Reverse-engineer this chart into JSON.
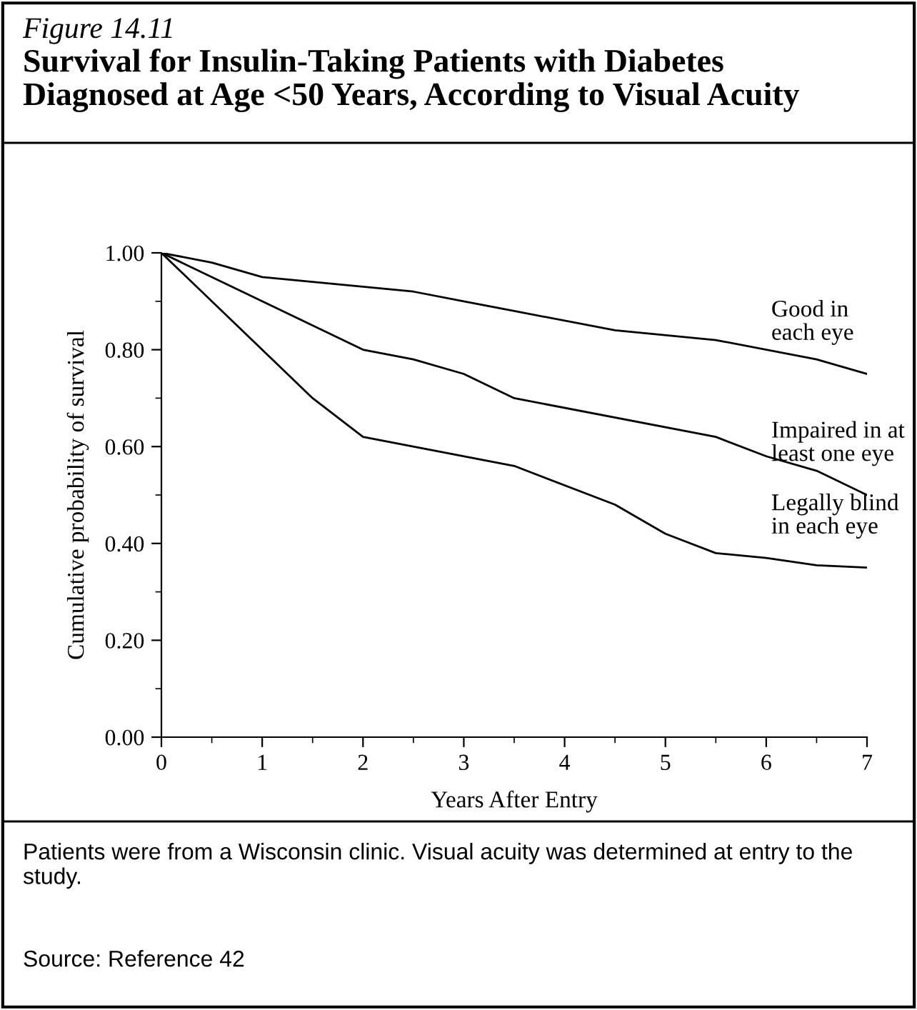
{
  "chart_data": {
    "type": "line",
    "title": "Survival for Insulin-Taking Patients with Diabetes\nDiagnosed at Age <50 Years, According to Visual Acuity",
    "subtitle": "Figure 14.11",
    "xlabel": "Years After Entry",
    "ylabel": "Cumulative probability of survival",
    "series": [
      {
        "name": "Good in\neach eye",
        "color": "#000000",
        "x": [
          0,
          0.5,
          1,
          2,
          2.5,
          3,
          3.5,
          4.5,
          5.5,
          6.5,
          7
        ],
        "values": [
          1.0,
          0.98,
          0.95,
          0.93,
          0.92,
          0.9,
          0.88,
          0.84,
          0.82,
          0.78,
          0.75
        ]
      },
      {
        "name": "Impaired in at\nleast one eye",
        "color": "#000000",
        "x": [
          0,
          1,
          2,
          2.5,
          3,
          3.5,
          5.5,
          6,
          6.5,
          7
        ],
        "values": [
          1.0,
          0.9,
          0.8,
          0.78,
          0.75,
          0.7,
          0.62,
          0.58,
          0.55,
          0.5
        ]
      },
      {
        "name": "Legally blind\nin each eye",
        "color": "#000000",
        "x": [
          0,
          1.5,
          2,
          3.5,
          4.5,
          5,
          5.5,
          6,
          6.5,
          7
        ],
        "values": [
          1.0,
          0.7,
          0.62,
          0.56,
          0.48,
          0.42,
          0.38,
          0.37,
          0.355,
          0.35
        ]
      }
    ],
    "xlim": [
      0,
      7
    ],
    "xticks": [
      0,
      1,
      2,
      3,
      4,
      5,
      6,
      7
    ],
    "ylim": [
      0,
      1
    ],
    "yticks": [
      {
        "value": 0,
        "label": "0.00"
      },
      {
        "value": 0.2,
        "label": "0.20"
      },
      {
        "value": 0.4,
        "label": "0.40"
      },
      {
        "value": 0.6,
        "label": "0.60"
      },
      {
        "value": 0.8,
        "label": "0.80"
      },
      {
        "value": 1.0,
        "label": "1.00"
      }
    ],
    "grid": false,
    "legend": false,
    "marker": "none",
    "line_style": "solid",
    "annotations": [
      "Patients were from a Wisconsin clinic. Visual acuity was determined at entry to the study.",
      "Source: Reference 42"
    ]
  }
}
